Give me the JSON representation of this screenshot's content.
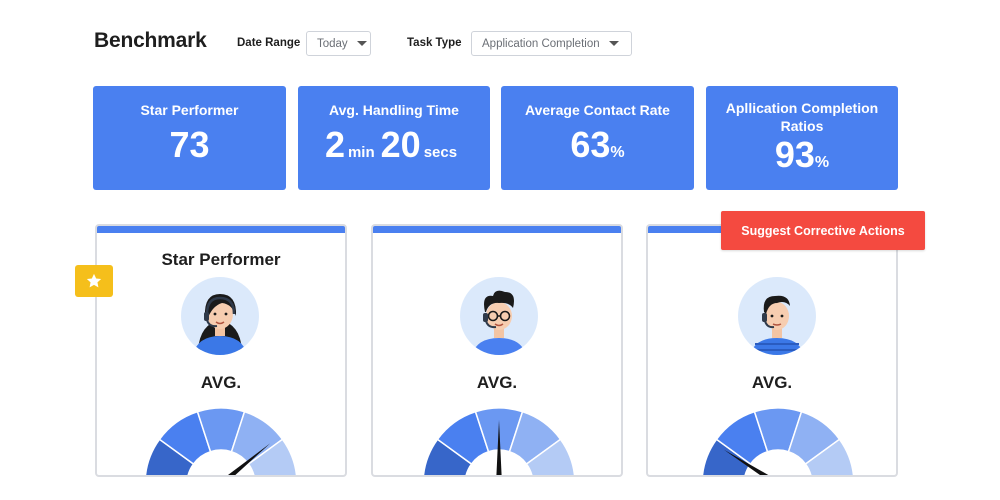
{
  "header": {
    "title": "Benchmark",
    "date_range_label": "Date Range",
    "date_range_value": "Today",
    "task_type_label": "Task Type",
    "task_type_value": "Application Completion"
  },
  "kpis": [
    {
      "title": "Star Performer",
      "value": "73"
    },
    {
      "title": "Avg. Handling Time",
      "minutes": "2",
      "minutes_unit": "min",
      "seconds": "20",
      "seconds_unit": "secs"
    },
    {
      "title": "Average Contact Rate",
      "value": "63",
      "unit": "%"
    },
    {
      "title": "Apllication Completion Ratios",
      "value": "93",
      "unit": "%"
    }
  ],
  "cards": [
    {
      "heading": "Star Performer",
      "avg_label": "AVG.",
      "avatar": "female-agent-headset-avatar",
      "gauge_level": 0.78
    },
    {
      "heading": "",
      "avg_label": "AVG.",
      "avatar": "male-agent-glasses-headset-avatar",
      "gauge_level": 0.5
    },
    {
      "heading": "",
      "avg_label": "AVG.",
      "avatar": "male-agent-headset-avatar",
      "gauge_level": 0.18
    }
  ],
  "star_badge_icon": "star-icon",
  "actions": {
    "suggest_label": "Suggest Corrective Actions"
  },
  "colors": {
    "accent": "#4a80f0",
    "alert": "#f44a40",
    "star": "#f5bf1b",
    "gauge_segments": [
      "#3766c9",
      "#4a80f0",
      "#6b98f2",
      "#8fb1f3",
      "#b4cbf5"
    ]
  }
}
